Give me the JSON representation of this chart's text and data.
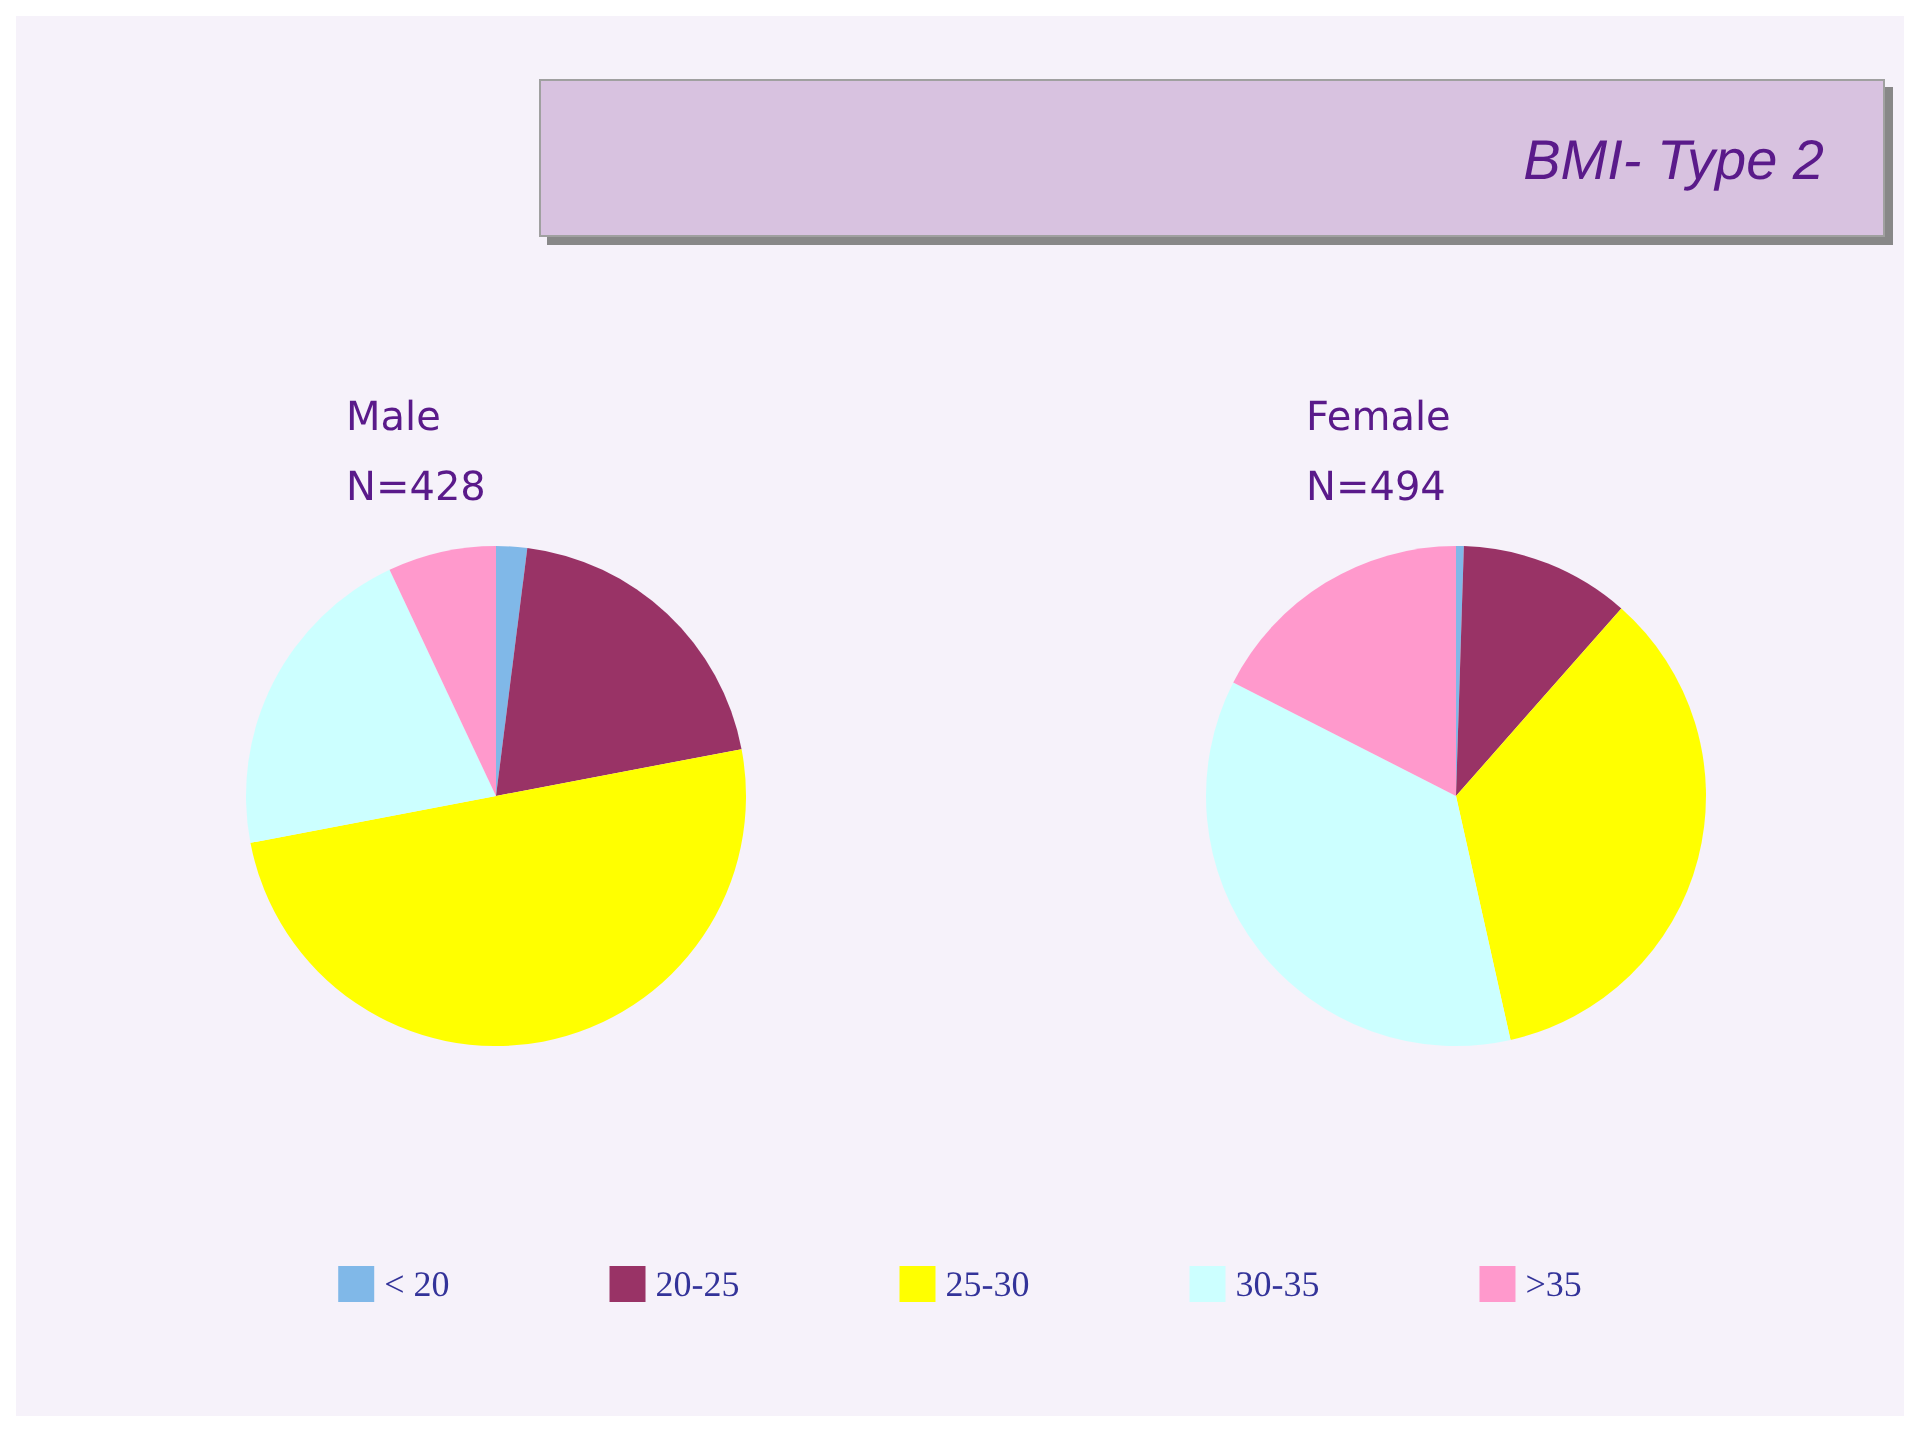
{
  "chart_data": {
    "type": "pie",
    "title": "BMI- Type 2",
    "categories": [
      "< 20",
      "20-25",
      "25-30",
      "30-35",
      ">35"
    ],
    "colors": [
      "#80b8e8",
      "#993366",
      "#ffff00",
      "#ccffff",
      "#ff99cc"
    ],
    "series": [
      {
        "name": "Male",
        "values": [
          2,
          20,
          50,
          21,
          7
        ]
      },
      {
        "name": "Female",
        "values": [
          0.5,
          11,
          35,
          36,
          17.5
        ]
      }
    ],
    "annotations": [
      "N=428",
      "N=494"
    ],
    "legend": "bottom"
  }
}
